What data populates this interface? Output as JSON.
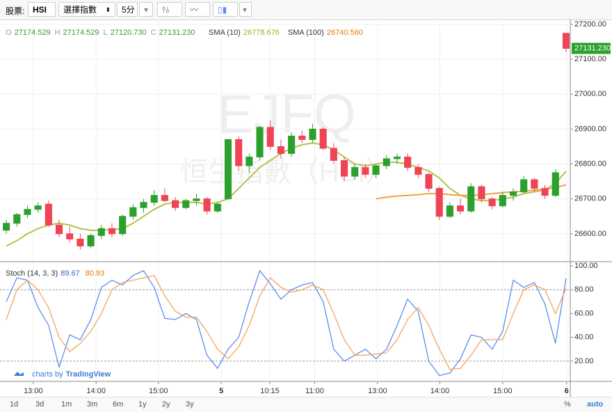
{
  "toolbar": {
    "market_label": "股票:",
    "symbol": "HSI",
    "index_select": "選擇指數",
    "interval": "5分"
  },
  "watermark": {
    "code": "EJFQ",
    "name": "恒生指數（HSI）"
  },
  "credit": {
    "prefix": "charts by",
    "brand": "TradingView"
  },
  "range_buttons": [
    "1d",
    "3d",
    "1m",
    "3m",
    "6m",
    "1y",
    "2y",
    "3y"
  ],
  "scale_buttons": [
    "%",
    "auto"
  ],
  "chart_data": [
    {
      "type": "candlestick",
      "legend": {
        "open_label": "O",
        "open": "27174.529",
        "high_label": "H",
        "high": "27174.529",
        "low_label": "L",
        "low": "27120.730",
        "close_label": "C",
        "close": "27131.230"
      },
      "up_color": "#2ca02c",
      "down_color": "#ee4455",
      "open": [
        26610,
        26630,
        26655,
        26670,
        26685,
        26625,
        26600,
        26585,
        26565,
        26595,
        26615,
        26600,
        26650,
        26675,
        26690,
        26710,
        26695,
        26675,
        26695,
        26700,
        26665,
        26700,
        26870,
        26795,
        26820,
        26905,
        26850,
        26830,
        26880,
        26870,
        26900,
        26845,
        26810,
        26765,
        26790,
        26770,
        26795,
        26815,
        26820,
        26790,
        26770,
        26730,
        26650,
        26680,
        26665,
        26735,
        26700,
        26680,
        26710,
        26720,
        26755,
        26730,
        26710,
        27174.529
      ],
      "high": [
        26640,
        26660,
        26680,
        26690,
        26695,
        26640,
        26620,
        26600,
        26600,
        26625,
        26630,
        26655,
        26685,
        26700,
        26725,
        26730,
        26705,
        26700,
        26715,
        26705,
        26690,
        26870,
        26880,
        26830,
        26910,
        26925,
        26870,
        26890,
        26895,
        26915,
        26905,
        26860,
        26820,
        26800,
        26800,
        26800,
        26825,
        26830,
        26830,
        26800,
        26775,
        26735,
        26690,
        26700,
        26745,
        26740,
        26705,
        26720,
        26730,
        26765,
        26760,
        26740,
        26785,
        27174.529
      ],
      "low": [
        26600,
        26620,
        26645,
        26660,
        26620,
        26590,
        26575,
        26555,
        26560,
        26585,
        26590,
        26595,
        26640,
        26660,
        26680,
        26690,
        26665,
        26670,
        26680,
        26655,
        26660,
        26700,
        26780,
        26775,
        26810,
        26840,
        26815,
        26820,
        26860,
        26860,
        26840,
        26800,
        26750,
        26755,
        26760,
        26760,
        26785,
        26800,
        26780,
        26760,
        26720,
        26640,
        26645,
        26655,
        26660,
        26690,
        26670,
        26675,
        26695,
        26715,
        26720,
        26700,
        26705,
        27120.73
      ],
      "close": [
        26630,
        26655,
        26670,
        26680,
        26625,
        26600,
        26585,
        26565,
        26595,
        26615,
        26600,
        26650,
        26675,
        26690,
        26710,
        26695,
        26675,
        26695,
        26700,
        26665,
        26685,
        26870,
        26795,
        26820,
        26905,
        26850,
        26830,
        26880,
        26870,
        26900,
        26845,
        26810,
        26765,
        26790,
        26770,
        26795,
        26815,
        26820,
        26790,
        26770,
        26730,
        26650,
        26680,
        26665,
        26735,
        26700,
        26680,
        26710,
        26720,
        26755,
        26730,
        26710,
        26775,
        27131.23
      ],
      "overlays": [
        {
          "name": "SMA (10)",
          "color": "#b9bf4a",
          "values": [
            26565,
            26580,
            26600,
            26615,
            26625,
            26630,
            26625,
            26615,
            26610,
            26610,
            26612,
            26615,
            26630,
            26650,
            26670,
            26685,
            26690,
            26690,
            26690,
            26685,
            26690,
            26700,
            26730,
            26760,
            26790,
            26810,
            26830,
            26845,
            26855,
            26860,
            26855,
            26840,
            26820,
            26800,
            26795,
            26800,
            26805,
            26805,
            26800,
            26790,
            26780,
            26760,
            26730,
            26710,
            26700,
            26695,
            26695,
            26700,
            26705,
            26715,
            26720,
            26725,
            26745,
            26778.676
          ]
        },
        {
          "name": "SMA (100)",
          "color": "#f0a040",
          "legend_value": "26740.560",
          "values": [
            null,
            null,
            null,
            null,
            null,
            null,
            null,
            null,
            null,
            null,
            null,
            null,
            null,
            null,
            null,
            null,
            null,
            null,
            null,
            null,
            null,
            null,
            null,
            null,
            null,
            null,
            null,
            null,
            null,
            null,
            null,
            null,
            null,
            null,
            null,
            26700,
            26705,
            26708,
            26710,
            26712,
            26715,
            26715,
            26712,
            26710,
            26710,
            26712,
            26715,
            26718,
            26720,
            26722,
            26725,
            26728,
            26732,
            26740.56
          ]
        }
      ],
      "last_price_label": "27131.230",
      "xlim": [
        -0.6,
        53.4
      ],
      "xticks": [
        {
          "value": 2.55,
          "label": "13:00"
        },
        {
          "value": 8.5,
          "label": "14:00"
        },
        {
          "value": 14.4,
          "label": "15:00"
        },
        {
          "value": 20.35,
          "label": "5"
        },
        {
          "value": 24.95,
          "label": "10:15"
        },
        {
          "value": 29.2,
          "label": "11:00"
        },
        {
          "value": 35.15,
          "label": "13:00"
        },
        {
          "value": 41.05,
          "label": "14:00"
        },
        {
          "value": 47,
          "label": "15:00"
        },
        {
          "value": 53.05,
          "label": "6"
        }
      ],
      "ylim": [
        26522,
        27214
      ],
      "yticks": [
        {
          "value": 26600,
          "label": "26600.00"
        },
        {
          "value": 26700,
          "label": "26700.00"
        },
        {
          "value": 26800,
          "label": "26800.00"
        },
        {
          "value": 26900,
          "label": "26900.00"
        },
        {
          "value": 27000,
          "label": "27000.00"
        },
        {
          "value": 27100,
          "label": "27100.00"
        },
        {
          "value": 27200,
          "label": "27200.00"
        }
      ],
      "grid": true
    },
    {
      "type": "line",
      "title": "Stoch (14, 3, 3)",
      "series": [
        {
          "color": "#5b8def",
          "values": [
            70,
            90,
            88,
            65,
            50,
            15,
            42,
            38,
            55,
            82,
            88,
            84,
            92,
            96,
            82,
            56,
            55,
            60,
            55,
            25,
            14,
            30,
            40,
            70,
            96,
            85,
            72,
            80,
            84,
            86,
            70,
            30,
            20,
            25,
            30,
            22,
            30,
            50,
            72,
            62,
            20,
            8,
            10,
            22,
            42,
            40,
            30,
            45,
            88,
            82,
            86,
            68,
            35,
            89.67
          ]
        },
        {
          "color": "#f7a35c",
          "values": [
            55,
            80,
            88,
            80,
            65,
            40,
            28,
            35,
            45,
            60,
            80,
            86,
            88,
            90,
            92,
            75,
            62,
            57,
            57,
            45,
            30,
            22,
            32,
            50,
            75,
            90,
            82,
            78,
            80,
            84,
            80,
            60,
            38,
            25,
            25,
            26,
            27,
            38,
            55,
            65,
            50,
            30,
            13,
            14,
            25,
            38,
            38,
            38,
            60,
            80,
            84,
            80,
            60,
            80.93
          ]
        }
      ],
      "guides": [
        80,
        20
      ],
      "ylim": [
        3,
        103
      ],
      "yticks": [
        {
          "value": 20,
          "label": "20.00"
        },
        {
          "value": 40,
          "label": "40.00"
        },
        {
          "value": 60,
          "label": "60.00"
        },
        {
          "value": 80,
          "label": "80.00"
        },
        {
          "value": 100,
          "label": "100.00"
        }
      ]
    }
  ]
}
